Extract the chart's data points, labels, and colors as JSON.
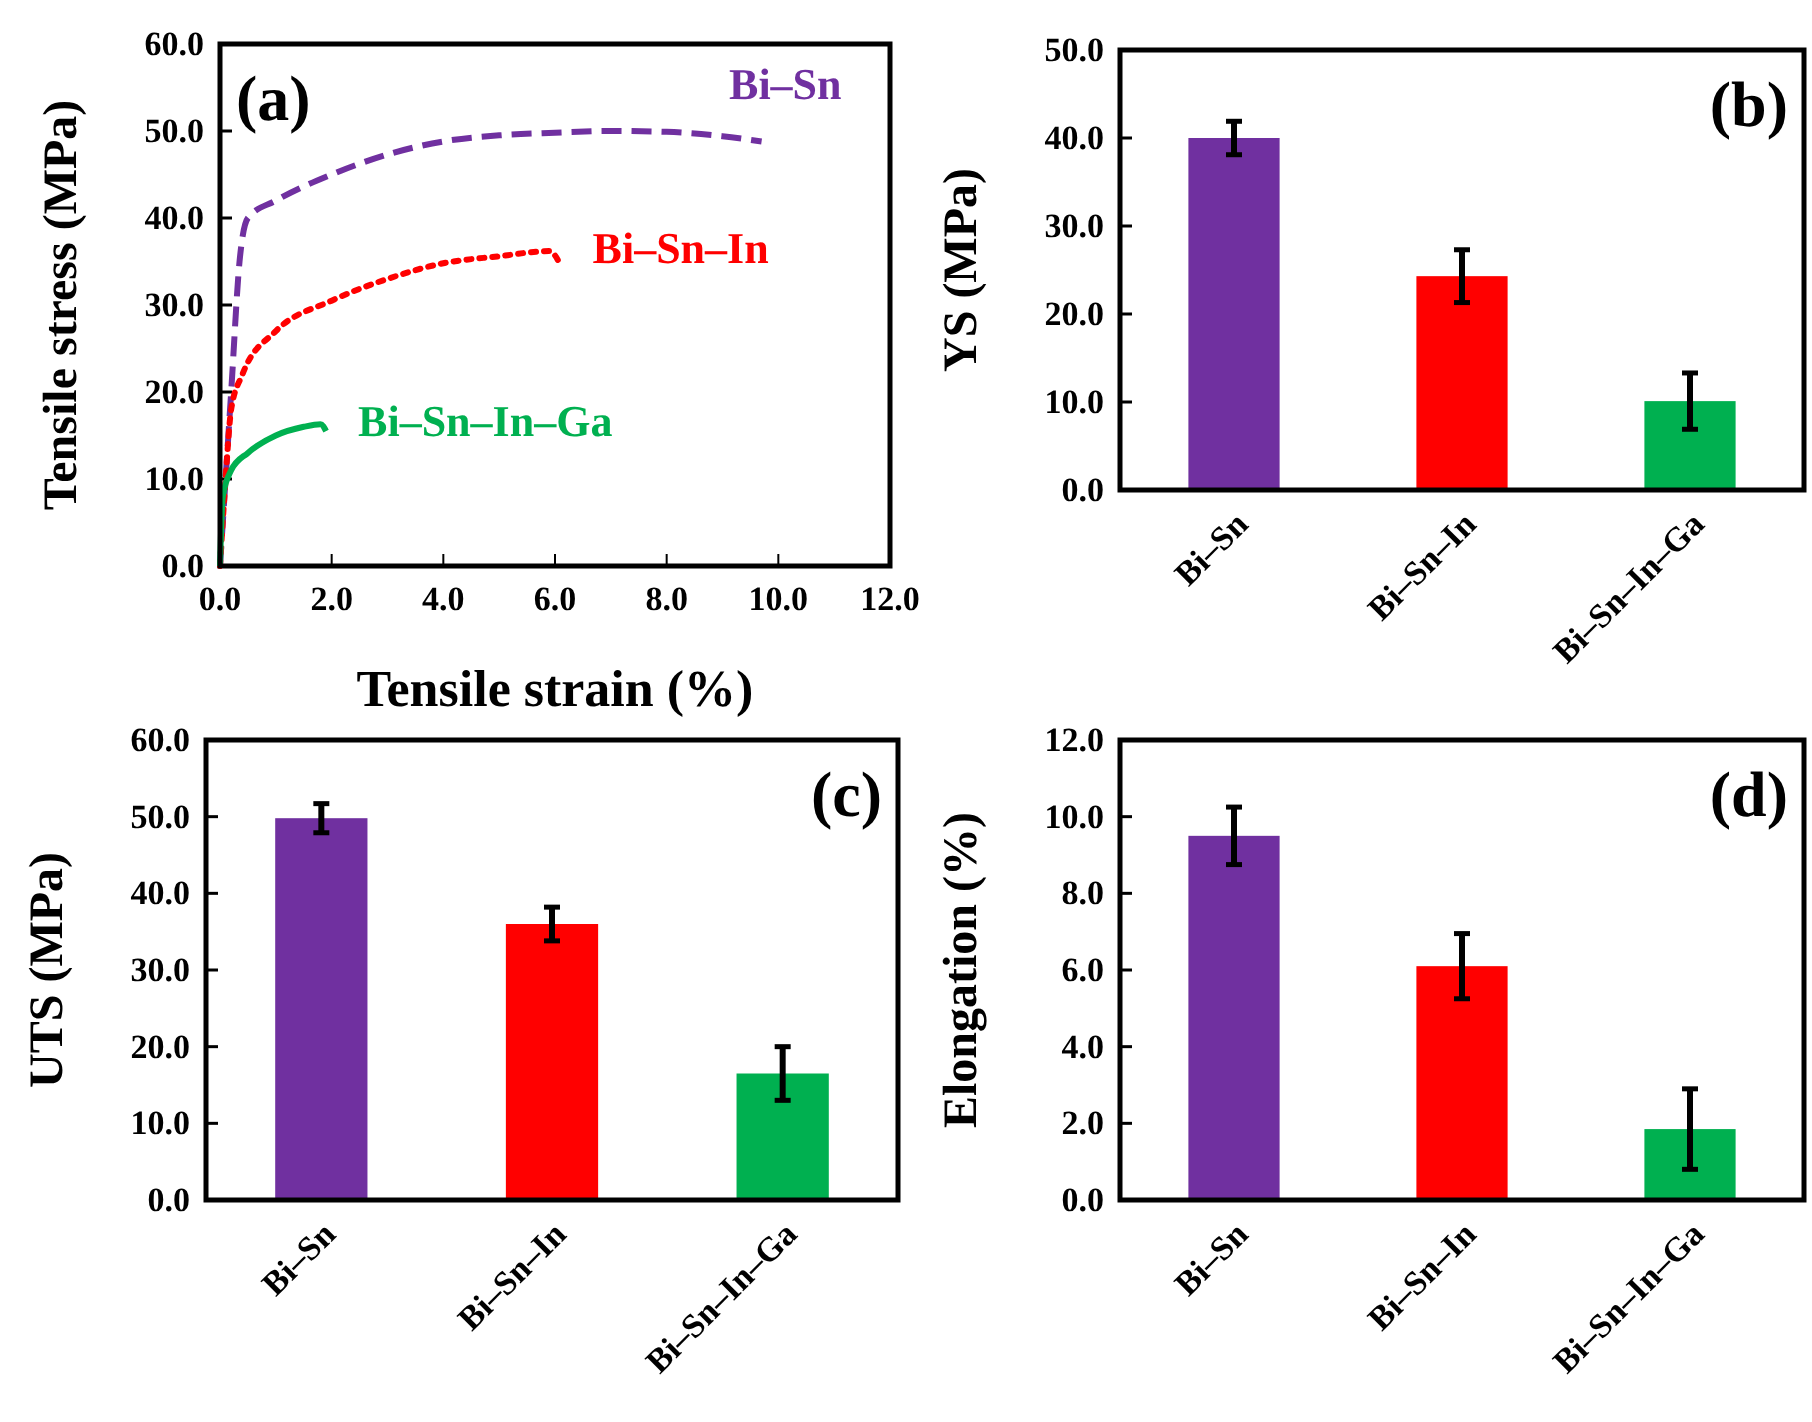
{
  "chart_data": [
    {
      "type": "line",
      "xlabel": "Tensile strain (%)",
      "ylabel": "Tensile stress (MPa)",
      "annotations": [
        "(a)"
      ],
      "xlim": [
        0,
        12
      ],
      "xticks": [
        {
          "value": 0,
          "label": "0.0"
        },
        {
          "value": 2,
          "label": "2.0"
        },
        {
          "value": 4,
          "label": "4.0"
        },
        {
          "value": 6,
          "label": "6.0"
        },
        {
          "value": 8,
          "label": "8.0"
        },
        {
          "value": 10,
          "label": "10.0"
        },
        {
          "value": 12,
          "label": "12.0"
        }
      ],
      "ylim": [
        0,
        60
      ],
      "yticks": [
        {
          "value": 0,
          "label": "0.0"
        },
        {
          "value": 10,
          "label": "10.0"
        },
        {
          "value": 20,
          "label": "20.0"
        },
        {
          "value": 30,
          "label": "30.0"
        },
        {
          "value": 40,
          "label": "40.0"
        },
        {
          "value": 50,
          "label": "50.0"
        },
        {
          "value": 60,
          "label": "60.0"
        }
      ],
      "series": [
        {
          "name": "Bi–Sn",
          "color": "#7030a0",
          "line_style": "dashed",
          "x": [
            0,
            0.1,
            0.2,
            0.35,
            0.5,
            1,
            2,
            3,
            4,
            5,
            6,
            7,
            8,
            9,
            9.7
          ],
          "values": [
            0,
            10,
            20,
            35,
            40,
            42,
            45,
            47.3,
            48.8,
            49.5,
            49.8,
            50,
            49.9,
            49.4,
            48.8
          ]
        },
        {
          "name": "Bi–Sn–In",
          "color": "#ff0000",
          "line_style": "dotted",
          "x": [
            0,
            0.1,
            0.2,
            0.4,
            1,
            2,
            3,
            4,
            5,
            5.9,
            6.1
          ],
          "values": [
            0,
            10,
            18,
            22,
            27,
            30.5,
            33,
            34.8,
            35.6,
            36.2,
            34.6
          ]
        },
        {
          "name": "Bi–Sn–In–Ga",
          "color": "#00b050",
          "line_style": "solid",
          "x": [
            0,
            0.05,
            0.2,
            0.5,
            1,
            1.5,
            1.8,
            1.9
          ],
          "values": [
            0,
            8,
            11,
            13,
            15,
            16,
            16.3,
            15.5
          ]
        }
      ]
    },
    {
      "type": "bar",
      "ylabel": "YS (MPa)",
      "annotations": [
        "(b)"
      ],
      "categories": [
        "Bi–Sn",
        "Bi–Sn–In",
        "Bi–Sn–In–Ga"
      ],
      "values": [
        40,
        24.3,
        10.1
      ],
      "colors": [
        "#7030a0",
        "#ff0000",
        "#00b050"
      ],
      "errors": [
        1.9,
        3,
        3.2
      ],
      "ylim": [
        0,
        50
      ],
      "yticks": [
        {
          "value": 0,
          "label": "0.0"
        },
        {
          "value": 10,
          "label": "10.0"
        },
        {
          "value": 20,
          "label": "20.0"
        },
        {
          "value": 30,
          "label": "30.0"
        },
        {
          "value": 40,
          "label": "40.0"
        },
        {
          "value": 50,
          "label": "50.0"
        }
      ]
    },
    {
      "type": "bar",
      "ylabel": "UTS (MPa)",
      "annotations": [
        "(c)"
      ],
      "categories": [
        "Bi–Sn",
        "Bi–Sn–In",
        "Bi–Sn–In–Ga"
      ],
      "values": [
        49.8,
        36,
        16.5
      ],
      "colors": [
        "#7030a0",
        "#ff0000",
        "#00b050"
      ],
      "errors": [
        1.9,
        2.2,
        3.5
      ],
      "ylim": [
        0,
        60
      ],
      "yticks": [
        {
          "value": 0,
          "label": "0.0"
        },
        {
          "value": 10,
          "label": "10.0"
        },
        {
          "value": 20,
          "label": "20.0"
        },
        {
          "value": 30,
          "label": "30.0"
        },
        {
          "value": 40,
          "label": "40.0"
        },
        {
          "value": 50,
          "label": "50.0"
        },
        {
          "value": 60,
          "label": "60.0"
        }
      ]
    },
    {
      "type": "bar",
      "ylabel": "Elongation (%)",
      "annotations": [
        "(d)"
      ],
      "categories": [
        "Bi–Sn",
        "Bi–Sn–In",
        "Bi–Sn–In–Ga"
      ],
      "values": [
        9.5,
        6.1,
        1.85
      ],
      "colors": [
        "#7030a0",
        "#ff0000",
        "#00b050"
      ],
      "errors": [
        0.75,
        0.85,
        1.05
      ],
      "ylim": [
        0,
        12
      ],
      "yticks": [
        {
          "value": 0,
          "label": "0.0"
        },
        {
          "value": 2,
          "label": "2.0"
        },
        {
          "value": 4,
          "label": "4.0"
        },
        {
          "value": 6,
          "label": "6.0"
        },
        {
          "value": 8,
          "label": "8.0"
        },
        {
          "value": 10,
          "label": "10.0"
        },
        {
          "value": 12,
          "label": "12.0"
        }
      ]
    }
  ]
}
